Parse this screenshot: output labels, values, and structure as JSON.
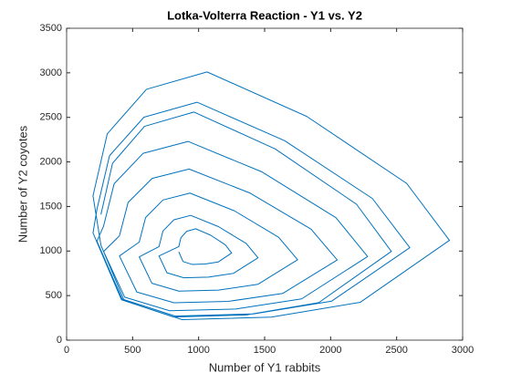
{
  "chart_data": {
    "type": "line",
    "title": "Lotka-Volterra Reaction - Y1 vs. Y2",
    "x_label": "Number of Y1 rabbits",
    "y_label": "Number of Y2 coyotes",
    "xlim": [
      0,
      3000
    ],
    "ylim": [
      0,
      3500
    ],
    "xticks": [
      0,
      500,
      1000,
      1500,
      2000,
      2500,
      3000
    ],
    "yticks": [
      0,
      500,
      1000,
      1500,
      2000,
      2500,
      3000,
      3500
    ],
    "box": true,
    "series": [
      {
        "color": "#0072BD",
        "x": [
          850,
          882,
          950,
          1050,
          1150,
          1250,
          1202,
          1090,
          978,
          910,
          866,
          850,
          700,
          760,
          888,
          1075,
          1263,
          1450,
          1360,
          1150,
          940,
          813,
          730,
          700,
          550,
          646,
          850,
          1150,
          1450,
          1750,
          1606,
          1270,
          934,
          730,
          598,
          550,
          400,
          532,
          813,
          1225,
          1638,
          2050,
          1852,
          1390,
          928,
          648,
          466,
          400,
          280,
          440,
          780,
          1280,
          1780,
          2280,
          2040,
          1480,
          920,
          580,
          360,
          280,
          230,
          420,
          823,
          1415,
          2008,
          2600,
          2316,
          1652,
          988,
          586,
          325,
          230,
          200,
          416,
          875,
          1550,
          2225,
          2900,
          2576,
          1820,
          1064,
          605,
          308,
          200,
          260,
          436,
          810,
          1360,
          1910,
          2460,
          2196,
          1580,
          964,
          590,
          348,
          260
        ],
        "values": [
          990,
          882,
          850,
          854,
          878,
          978,
          1070,
          1178,
          1250,
          1222,
          1150,
          1050,
          945,
          756,
          700,
          707,
          749,
          924,
          1085,
          1274,
          1400,
          1351,
          1225,
          1050,
          935,
          638,
          550,
          561,
          627,
          902,
          1155,
          1452,
          1650,
          1573,
          1375,
          1100,
          945,
          540,
          420,
          435,
          525,
          900,
          1245,
          1650,
          1920,
          1815,
          1545,
          1170,
          995,
          482,
          330,
          349,
          463,
          938,
          1375,
          1888,
          2230,
          2097,
          1755,
          1280,
          1110,
          462,
          270,
          294,
          438,
          1038,
          1590,
          2238,
          2670,
          2502,
          2070,
          1470,
          1203,
          452,
          230,
          258,
          425,
          1120,
          1759,
          2510,
          3010,
          2815,
          2315,
          1620,
          1065,
          444,
          260,
          283,
          421,
          996,
          1525,
          2146,
          2560,
          2399,
          1985,
          1410
        ]
      }
    ]
  }
}
